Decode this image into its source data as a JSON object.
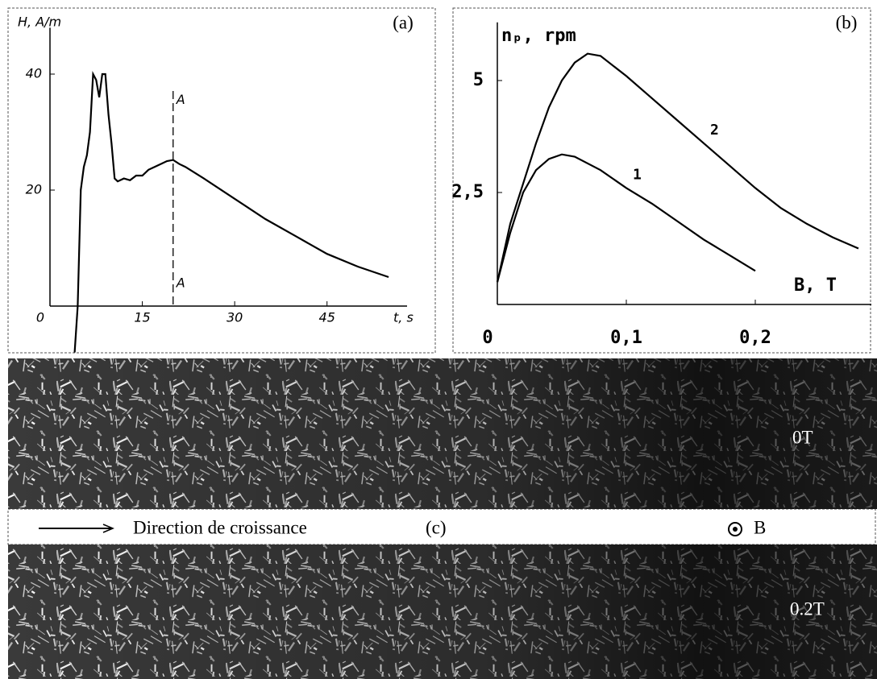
{
  "chart_data": [
    {
      "type": "line",
      "panel_label": "(a)",
      "ylabel": "H, A/m",
      "xlabel": "t, s",
      "x": [
        4,
        4.5,
        5,
        5.5,
        6,
        6.5,
        7,
        7.5,
        8,
        8.5,
        9,
        9.5,
        10,
        10.5,
        11,
        12,
        13,
        14,
        15,
        16,
        17,
        18,
        19,
        20,
        21,
        22,
        25,
        30,
        35,
        40,
        45,
        50,
        55
      ],
      "values": [
        -8,
        0,
        20,
        24,
        26,
        30,
        40,
        39,
        36,
        40,
        40,
        33,
        28,
        22,
        21.5,
        22,
        21.7,
        22.5,
        22.5,
        23.5,
        24,
        24.5,
        25,
        25.2,
        24.5,
        24,
        22,
        18.5,
        15,
        12,
        9,
        6.8,
        5
      ],
      "color": "#000000",
      "xlim": [
        0,
        58
      ],
      "ylim": [
        -8,
        48
      ],
      "xticks": [
        0,
        15,
        30,
        45
      ],
      "yticks": [
        20,
        40
      ],
      "marker_x": 20,
      "marker_labels": [
        "A",
        "A"
      ]
    },
    {
      "type": "line",
      "panel_label": "(b)",
      "ylabel": "nₚ, rpm",
      "xlabel": "B, T",
      "series": [
        {
          "name": "2",
          "color": "#000000",
          "x": [
            0,
            0.01,
            0.02,
            0.03,
            0.04,
            0.05,
            0.06,
            0.07,
            0.08,
            0.1,
            0.12,
            0.14,
            0.16,
            0.18,
            0.2,
            0.22,
            0.24,
            0.26,
            0.28
          ],
          "values": [
            0.5,
            1.8,
            2.7,
            3.6,
            4.4,
            5.0,
            5.4,
            5.6,
            5.55,
            5.1,
            4.6,
            4.1,
            3.6,
            3.1,
            2.6,
            2.15,
            1.8,
            1.5,
            1.25
          ]
        },
        {
          "name": "1",
          "color": "#000000",
          "x": [
            0,
            0.01,
            0.02,
            0.03,
            0.04,
            0.05,
            0.06,
            0.08,
            0.1,
            0.12,
            0.14,
            0.16,
            0.18,
            0.2
          ],
          "values": [
            0.5,
            1.6,
            2.5,
            3.0,
            3.25,
            3.35,
            3.3,
            3.0,
            2.6,
            2.25,
            1.85,
            1.45,
            1.1,
            0.75
          ]
        }
      ],
      "xlim": [
        0,
        0.29
      ],
      "ylim": [
        0,
        6.3
      ],
      "xticks": [
        0,
        {
          "value": 0.1,
          "label": "0,1"
        },
        {
          "value": 0.2,
          "label": "0,2"
        }
      ],
      "yticks": [
        {
          "value": 2.5,
          "label": "2,5"
        },
        5
      ]
    }
  ],
  "panel_c": {
    "label": "(c)",
    "growth_direction": "Direction de croissance",
    "field": "B",
    "images": [
      {
        "label": "0T"
      },
      {
        "label": "0.2T"
      }
    ]
  }
}
